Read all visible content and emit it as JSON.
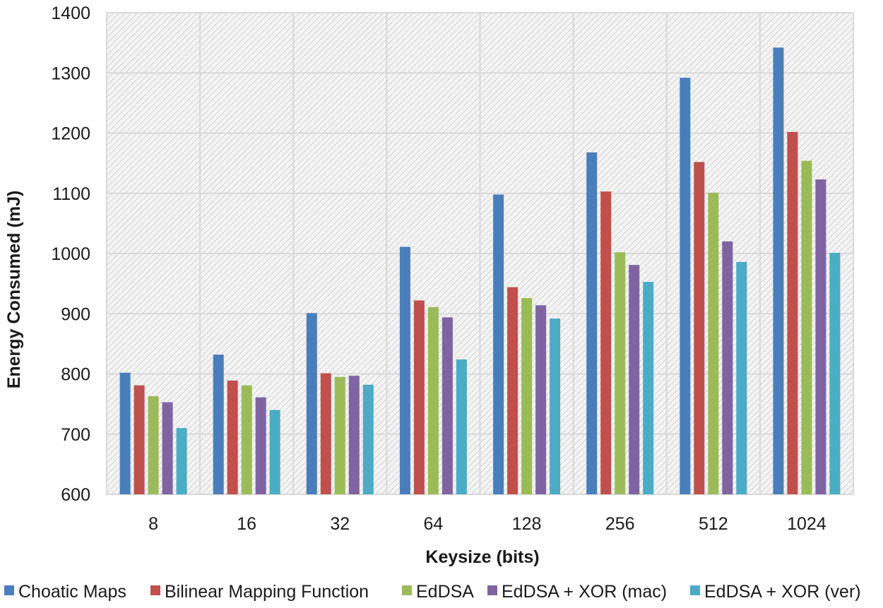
{
  "chart_data": {
    "type": "bar",
    "xlabel": "Keysize (bits)",
    "ylabel": "Energy Consumed (mJ)",
    "ylim": [
      600,
      1400
    ],
    "ytick_step": 100,
    "yticks": [
      "600",
      "700",
      "800",
      "900",
      "1000",
      "1100",
      "1200",
      "1300",
      "1400"
    ],
    "categories": [
      "8",
      "16",
      "32",
      "64",
      "128",
      "256",
      "512",
      "1024"
    ],
    "grid": true,
    "plot_background": "hatched light gray",
    "legend_position": "bottom",
    "series": [
      {
        "name": "Choatic Maps",
        "color": "#4a7ebb",
        "values": [
          802,
          832,
          901,
          1011,
          1098,
          1168,
          1292,
          1342
        ]
      },
      {
        "name": "Bilinear Mapping Function",
        "color": "#c0504d",
        "values": [
          781,
          789,
          801,
          922,
          944,
          1103,
          1152,
          1202
        ]
      },
      {
        "name": "EdDSA",
        "color": "#9bbb59",
        "values": [
          763,
          781,
          795,
          911,
          926,
          1002,
          1101,
          1154
        ]
      },
      {
        "name": "EdDSA + XOR (mac)",
        "color": "#8064a2",
        "values": [
          753,
          761,
          797,
          894,
          914,
          981,
          1020,
          1123
        ]
      },
      {
        "name": "EdDSA + XOR (ver)",
        "color": "#4bacc6",
        "values": [
          710,
          740,
          782,
          824,
          892,
          953,
          986,
          1001
        ]
      }
    ]
  }
}
